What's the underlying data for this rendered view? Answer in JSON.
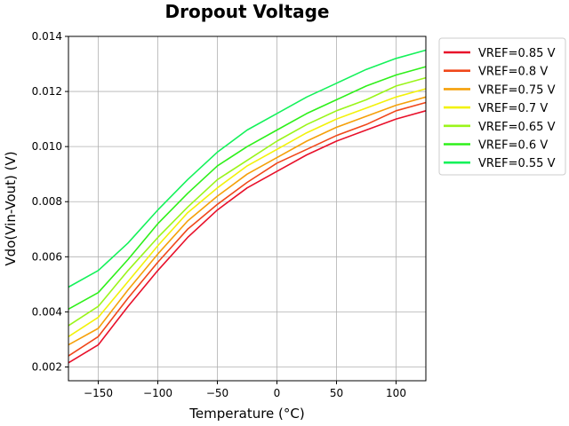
{
  "chart_data": {
    "type": "line",
    "title": "Dropout Voltage",
    "xlabel": "Temperature (°C)",
    "ylabel": "Vdo(Vin-Vout) (V)",
    "xlim": [
      -175,
      125
    ],
    "ylim": [
      0.0015,
      0.014
    ],
    "xticks": [
      -150,
      -100,
      -50,
      0,
      50,
      100
    ],
    "xtick_labels": [
      "−150",
      "−100",
      "−50",
      "0",
      "50",
      "100"
    ],
    "yticks": [
      0.002,
      0.004,
      0.006,
      0.008,
      0.01,
      0.012,
      0.014
    ],
    "ytick_labels": [
      "0.002",
      "0.004",
      "0.006",
      "0.008",
      "0.010",
      "0.012",
      "0.014"
    ],
    "grid": true,
    "legend_position": "outside-right-top",
    "x": [
      -175,
      -150,
      -125,
      -100,
      -75,
      -50,
      -25,
      0,
      25,
      50,
      75,
      100,
      125
    ],
    "series": [
      {
        "name": "VREF=0.85 V",
        "color": "#e8102a",
        "values": [
          0.00215,
          0.0028,
          0.0042,
          0.0055,
          0.0067,
          0.0077,
          0.0085,
          0.0091,
          0.0097,
          0.0102,
          0.0106,
          0.011,
          0.0113
        ]
      },
      {
        "name": "VREF=0.8 V",
        "color": "#f0471a",
        "values": [
          0.0024,
          0.0031,
          0.0045,
          0.0058,
          0.007,
          0.0079,
          0.0087,
          0.0094,
          0.0099,
          0.0104,
          0.0108,
          0.0113,
          0.0116
        ]
      },
      {
        "name": "VREF=0.75 V",
        "color": "#f5a00a",
        "values": [
          0.0028,
          0.0034,
          0.0048,
          0.0061,
          0.0073,
          0.0082,
          0.009,
          0.0096,
          0.0102,
          0.0107,
          0.0111,
          0.0115,
          0.0118
        ]
      },
      {
        "name": "VREF=0.7 V",
        "color": "#f2f20a",
        "values": [
          0.0031,
          0.0038,
          0.0051,
          0.0064,
          0.0076,
          0.0085,
          0.0093,
          0.0099,
          0.0105,
          0.011,
          0.0114,
          0.0118,
          0.0121
        ]
      },
      {
        "name": "VREF=0.65 V",
        "color": "#9af51a",
        "values": [
          0.0035,
          0.0042,
          0.0055,
          0.0067,
          0.0078,
          0.0088,
          0.0095,
          0.0102,
          0.0108,
          0.0113,
          0.0117,
          0.0122,
          0.0125
        ]
      },
      {
        "name": "VREF=0.6 V",
        "color": "#2ef01a",
        "values": [
          0.0041,
          0.0047,
          0.0059,
          0.0072,
          0.0083,
          0.0093,
          0.01,
          0.0106,
          0.0112,
          0.0117,
          0.0122,
          0.0126,
          0.0129
        ]
      },
      {
        "name": "VREF=0.55 V",
        "color": "#14f25a",
        "values": [
          0.0049,
          0.0055,
          0.0065,
          0.0077,
          0.0088,
          0.0098,
          0.0106,
          0.0112,
          0.0118,
          0.0123,
          0.0128,
          0.0132,
          0.0135
        ]
      }
    ]
  }
}
